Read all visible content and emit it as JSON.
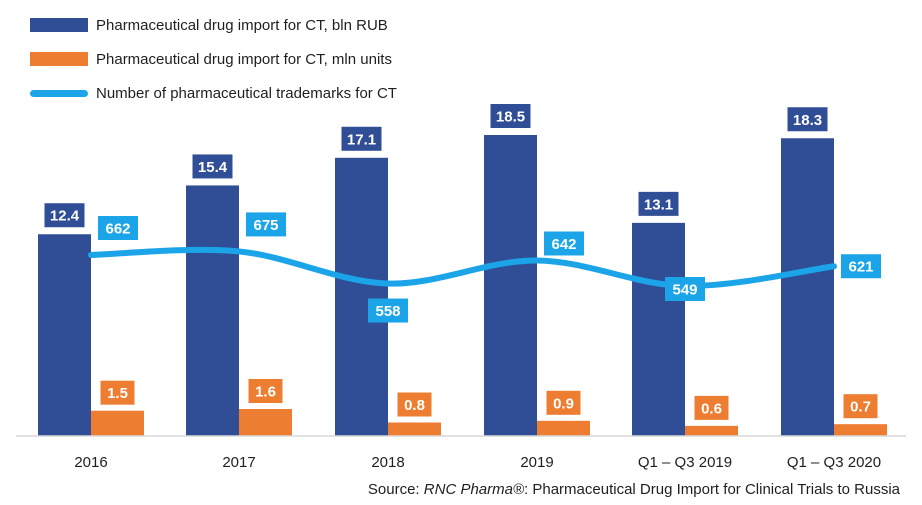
{
  "chart_data": {
    "type": "bar+line",
    "categories": [
      "2016",
      "2017",
      "2018",
      "2019",
      "Q1 – Q3 2019",
      "Q1 – Q3 2020"
    ],
    "series": [
      {
        "name": "Pharmaceutical drug import for CT, bln RUB",
        "kind": "bar",
        "color": "#2f4e96",
        "values": [
          12.4,
          15.4,
          17.1,
          18.5,
          13.1,
          18.3
        ],
        "labels": [
          "12.4",
          "15.4",
          "17.1",
          "18.5",
          "13.1",
          "18.3"
        ]
      },
      {
        "name": "Pharmaceutical drug import for CT, mln units",
        "kind": "bar",
        "color": "#ed7d31",
        "values": [
          1.5,
          1.6,
          0.8,
          0.9,
          0.6,
          0.7
        ],
        "labels": [
          "1.5",
          "1.6",
          "0.8",
          "0.9",
          "0.6",
          "0.7"
        ]
      },
      {
        "name": "Number of pharmaceutical trademarks for CT",
        "kind": "line",
        "color": "#1ba5e8",
        "values": [
          662,
          675,
          558,
          642,
          549,
          621
        ],
        "labels": [
          "662",
          "675",
          "558",
          "642",
          "549",
          "621"
        ]
      }
    ],
    "legend_position": "top-left",
    "grid": false
  },
  "source": {
    "prefix": "Source: ",
    "brand": "RNC Pharma®",
    "suffix": ": Pharmaceutical Drug Import for Clinical Trials to Russia"
  }
}
